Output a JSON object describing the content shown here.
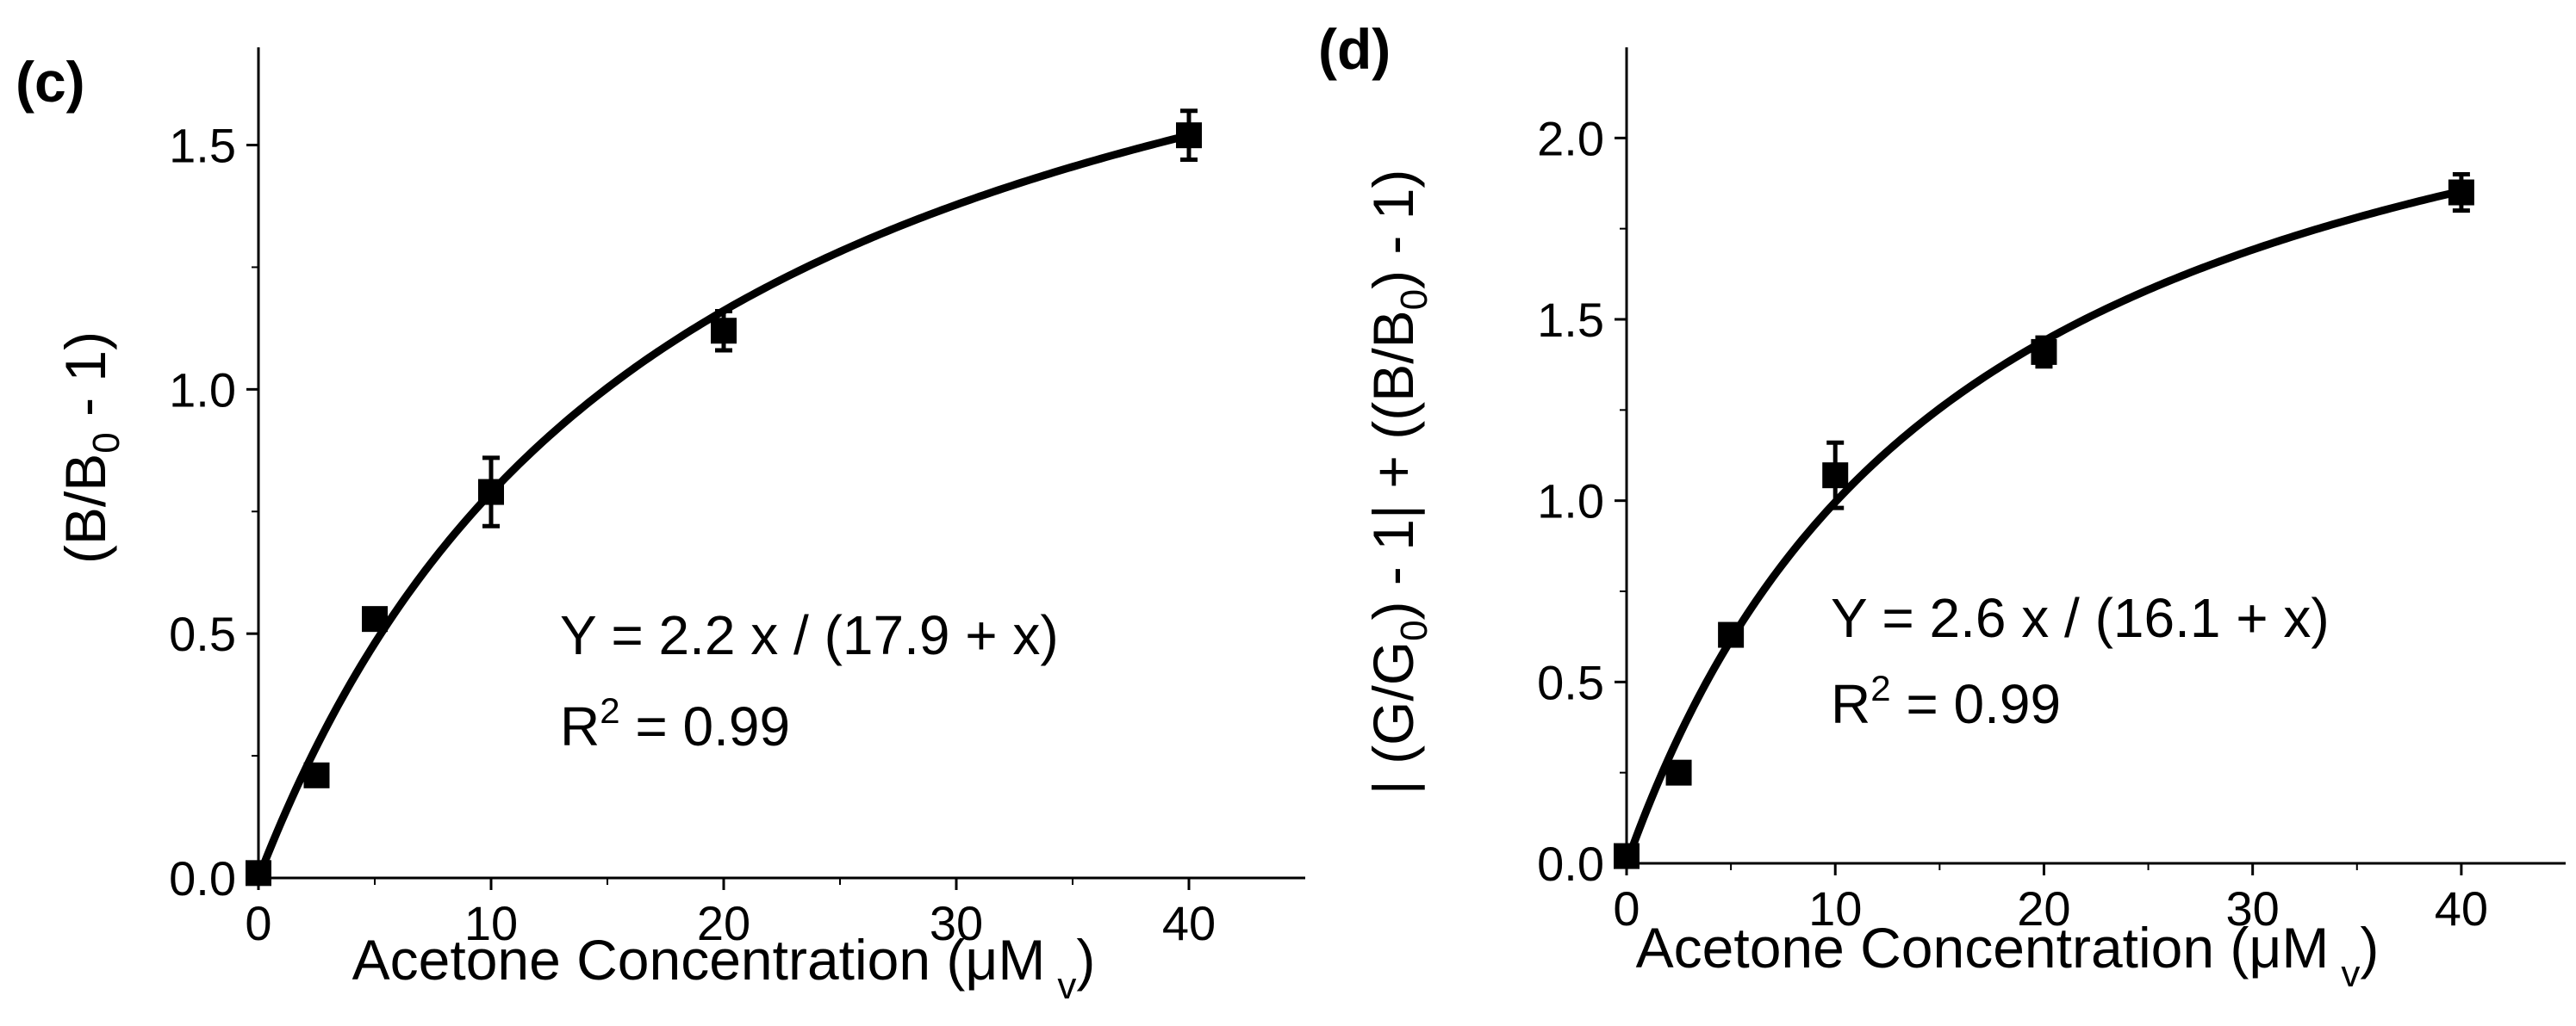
{
  "chart_data": [
    {
      "panel_label": "(c)",
      "type": "scatter",
      "title": "",
      "xlabel": "Acetone Concentration (μM",
      "xlabel_sub": "v",
      "xlabel_end": ")",
      "ylabel": "(B/B",
      "ylabel_sub": "0",
      "ylabel_end": " - 1)",
      "xlim": [
        0,
        45
      ],
      "ylim": [
        0,
        1.7
      ],
      "xticks": [
        0,
        10,
        20,
        30,
        40
      ],
      "yticks": [
        0.0,
        0.5,
        1.0,
        1.5
      ],
      "xtick_labels": [
        "0",
        "10",
        "20",
        "30",
        "40"
      ],
      "ytick_labels": [
        "0.0",
        "0.5",
        "1.0",
        "1.5"
      ],
      "series": [
        {
          "name": "data",
          "x": [
            0,
            2.5,
            5,
            10,
            20,
            40
          ],
          "y": [
            0.01,
            0.21,
            0.53,
            0.79,
            1.12,
            1.52
          ],
          "yerr": [
            0,
            0.02,
            0.02,
            0.07,
            0.04,
            0.05
          ]
        }
      ],
      "fit": {
        "a": 2.2,
        "b": 17.9,
        "x_range": [
          0,
          40
        ]
      },
      "equation_text": "Y = 2.2 x / (17.9 + x)",
      "r2_prefix": "R",
      "r2_sup": "2",
      "r2_suffix": " = 0.99"
    },
    {
      "panel_label": "(d)",
      "type": "scatter",
      "title": "",
      "xlabel": "Acetone Concentration (μM",
      "xlabel_sub": "v",
      "xlabel_end": ")",
      "ylabel_part1": "| (G/G",
      "ylabel_sub1": "0",
      "ylabel_part2": ") - 1| + ((B/B",
      "ylabel_sub2": "0",
      "ylabel_part3": ") - 1)",
      "xlim": [
        0,
        45
      ],
      "ylim": [
        0,
        2.25
      ],
      "xticks": [
        0,
        10,
        20,
        30,
        40
      ],
      "yticks": [
        0.0,
        0.5,
        1.0,
        1.5,
        2.0
      ],
      "xtick_labels": [
        "0",
        "10",
        "20",
        "30",
        "40"
      ],
      "ytick_labels": [
        "0.0",
        "0.5",
        "1.0",
        "1.5",
        "2.0"
      ],
      "series": [
        {
          "name": "data",
          "x": [
            0,
            2.5,
            5,
            10,
            20,
            40
          ],
          "y": [
            0.02,
            0.25,
            0.63,
            1.07,
            1.41,
            1.85
          ],
          "yerr": [
            0,
            0.02,
            0.02,
            0.09,
            0.04,
            0.05
          ]
        }
      ],
      "fit": {
        "a": 2.6,
        "b": 16.1,
        "x_range": [
          0,
          40
        ]
      },
      "equation_text": "Y = 2.6 x / (16.1 + x)",
      "r2_prefix": "R",
      "r2_sup": "2",
      "r2_suffix": " = 0.99"
    }
  ]
}
